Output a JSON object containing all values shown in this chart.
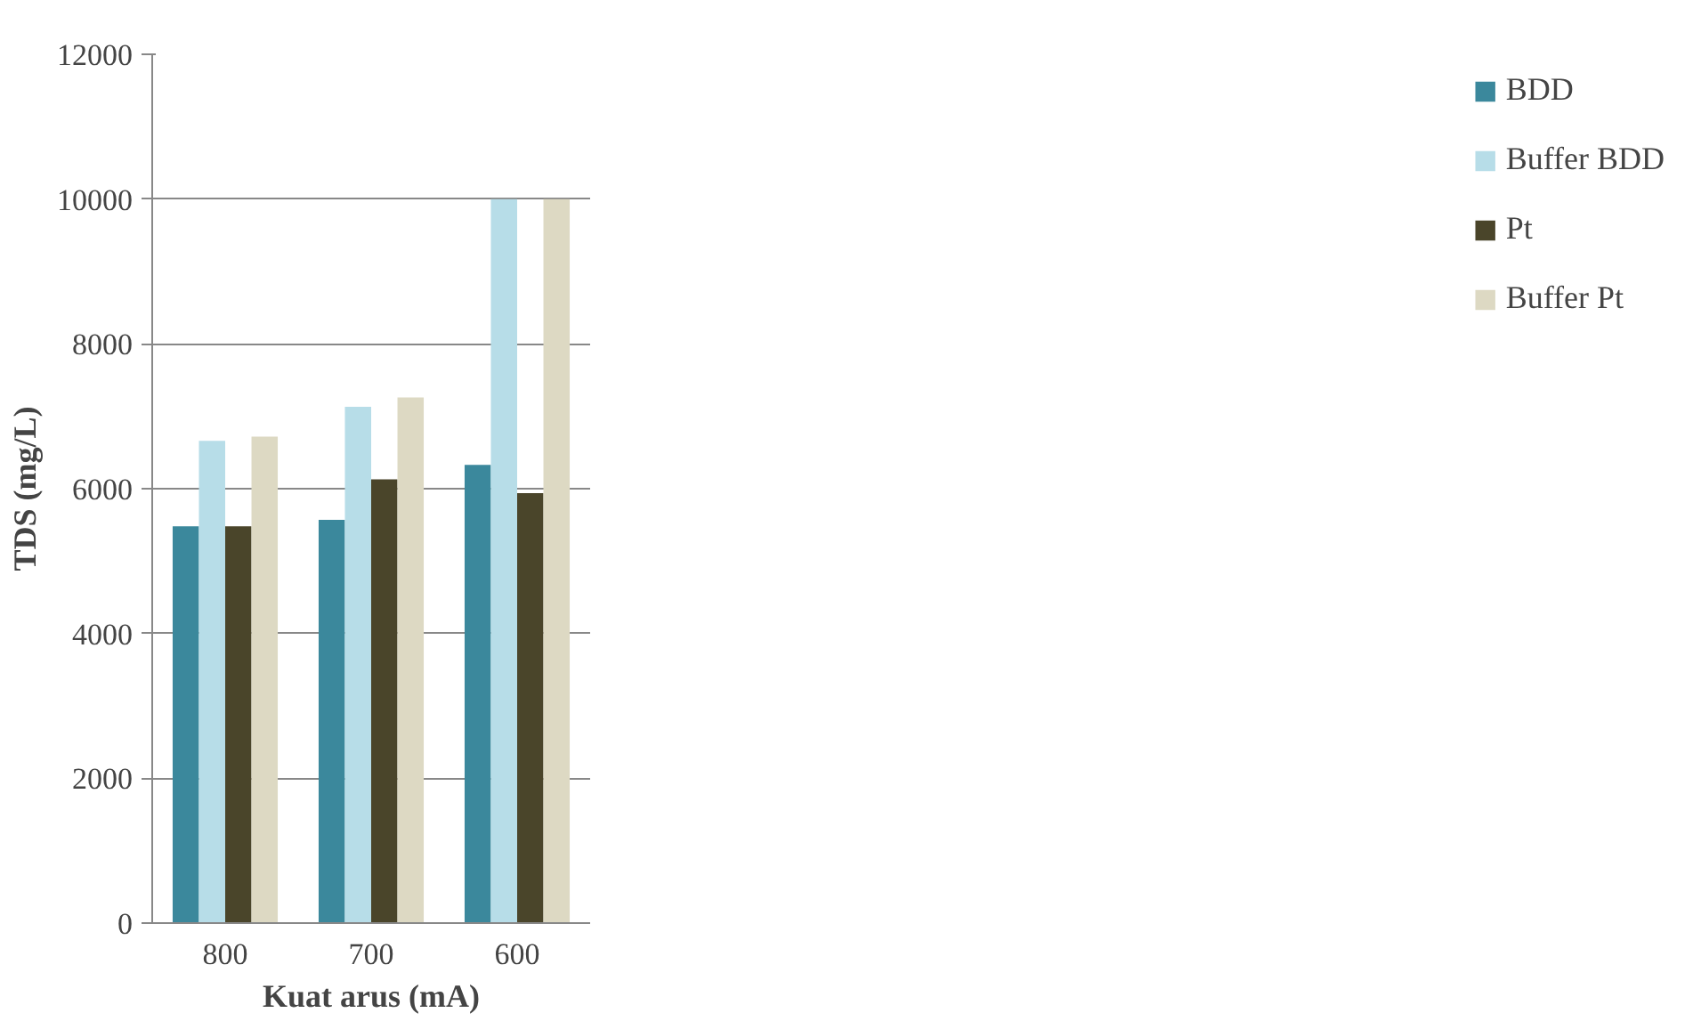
{
  "chart_data": {
    "type": "bar",
    "xlabel": "Kuat arus (mA)",
    "ylabel": "TDS (mg/L)",
    "categories": [
      "800",
      "700",
      "600"
    ],
    "series": [
      {
        "name": "BDD",
        "color": "#3b889c",
        "values": [
          5480,
          5570,
          6330
        ]
      },
      {
        "name": "Buffer BDD",
        "color": "#b7dde8",
        "values": [
          6660,
          7130,
          10000
        ]
      },
      {
        "name": "Pt",
        "color": "#4a452a",
        "values": [
          5480,
          6130,
          5940
        ]
      },
      {
        "name": "Buffer Pt",
        "color": "#ddd9c3",
        "values": [
          6720,
          7260,
          10000
        ]
      }
    ],
    "ylim": [
      0,
      12000
    ],
    "yticks": [
      0,
      2000,
      4000,
      6000,
      8000,
      10000,
      12000
    ],
    "grid": "y",
    "legend": "right"
  }
}
